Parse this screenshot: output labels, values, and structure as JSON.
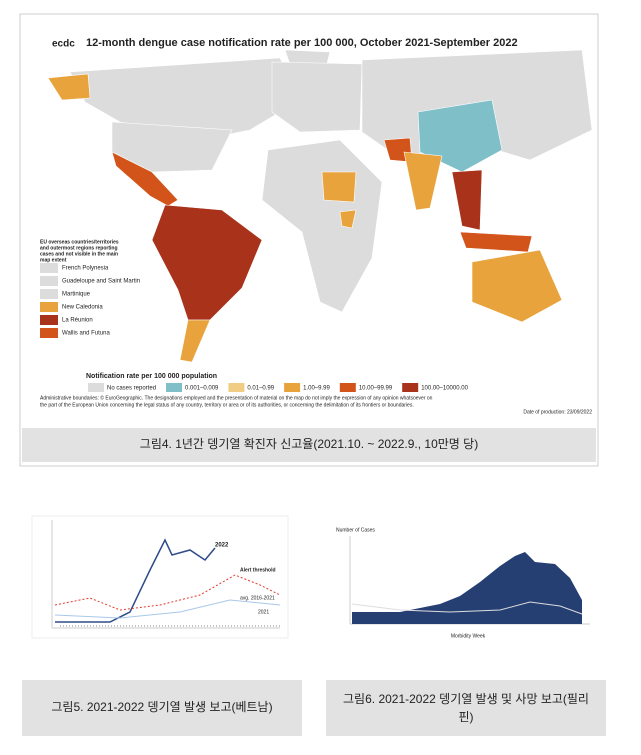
{
  "figure4": {
    "logo": "ecdc",
    "title": "12-month dengue case notification rate per 100 000, October 2021-September 2022",
    "overseas": {
      "title": [
        "EU overseas countries/territories",
        "and outermost regions reporting",
        "cases and not visible in the main",
        "map extent"
      ],
      "items": [
        {
          "name": "French Polynesia",
          "color": "#dcdcdc"
        },
        {
          "name": "Guadeloupe and Saint Martin",
          "color": "#dcdcdc"
        },
        {
          "name": "Martinique",
          "color": "#dcdcdc"
        },
        {
          "name": "New Caledonia",
          "color": "#e8a33d"
        },
        {
          "name": "La Réunion",
          "color": "#a8321a"
        },
        {
          "name": "Wallis and Futuna",
          "color": "#d2541a"
        }
      ]
    },
    "legend": {
      "title": "Notification rate per 100 000 population",
      "items": [
        {
          "name": "No cases reported",
          "color": "#dcdcdc"
        },
        {
          "name": "0.001–0.009",
          "color": "#7fbfc8"
        },
        {
          "name": "0.01–0.99",
          "color": "#f1cc84"
        },
        {
          "name": "1.00–9.99",
          "color": "#e8a33d"
        },
        {
          "name": "10.00–99.99",
          "color": "#d2541a"
        },
        {
          "name": "100.00–10000.00",
          "color": "#a8321a"
        }
      ]
    },
    "disclaimer": [
      "Administrative boundaries: © EuroGeographic. The designations employed and the presentation of material on the map do not imply the expression of any opinion whatsoever on",
      "the part of the European Union concerning the legal status of any country, territory or area or of its authorities, or concerning the delimitation of its frontiers or boundaries."
    ],
    "date": "Date of production: 23/09/2022",
    "caption": "그림4. 1년간 뎅기열 확진자 신고율(2021.10. ~ 2022.9., 10만명 당)"
  },
  "figure5": {
    "labels": [
      "2022",
      "Alert threshold",
      "avg. 2016-2021",
      "2021"
    ],
    "caption": "그림5. 2021-2022 뎅기열 발생 보고(베트남)"
  },
  "figure6": {
    "y_label": "Number of Cases",
    "x_label": "Morbidity Week",
    "caption": [
      "그림6. 2021-2022 뎅기열 발생 및 사망 보고(필리",
      "핀)"
    ]
  }
}
